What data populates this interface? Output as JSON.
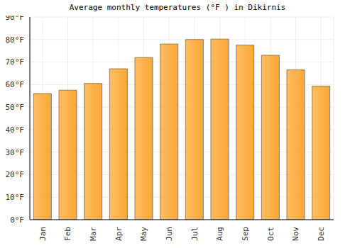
{
  "chart_data": {
    "type": "bar",
    "title": "Average monthly temperatures (°F ) in Dikirnis",
    "categories": [
      "Jan",
      "Feb",
      "Mar",
      "Apr",
      "May",
      "Jun",
      "Jul",
      "Aug",
      "Sep",
      "Oct",
      "Nov",
      "Dec"
    ],
    "values": [
      56,
      57.5,
      60.5,
      67,
      72,
      78,
      80,
      80.2,
      77.5,
      73,
      66.5,
      59.3
    ],
    "color": "#fca832",
    "ylim": [
      0,
      90
    ],
    "yticks": [
      {
        "value": 0,
        "label": "0°F"
      },
      {
        "value": 10,
        "label": "10°F"
      },
      {
        "value": 20,
        "label": "20°F"
      },
      {
        "value": 30,
        "label": "30°F"
      },
      {
        "value": 40,
        "label": "40°F"
      },
      {
        "value": 50,
        "label": "50°F"
      },
      {
        "value": 60,
        "label": "60°F"
      },
      {
        "value": 70,
        "label": "70°F"
      },
      {
        "value": 80,
        "label": "80°F"
      },
      {
        "value": 90,
        "label": "90°F"
      }
    ],
    "grid": true
  }
}
